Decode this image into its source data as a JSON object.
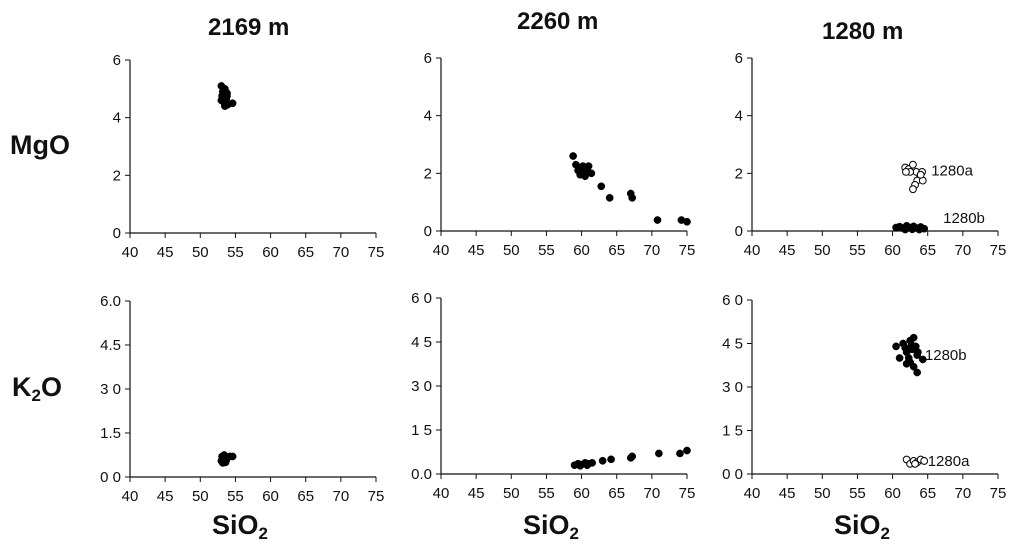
{
  "columns": [
    {
      "title": "2169 m"
    },
    {
      "title": "2260 m"
    },
    {
      "title": "1280 m"
    }
  ],
  "rows": [
    {
      "label_main": "MgO",
      "label_sub": ""
    },
    {
      "label_main": "K",
      "label_sub": "2",
      "label_tail": "O"
    }
  ],
  "xlabel": {
    "main": "SiO",
    "sub": "2"
  },
  "colors": {
    "filled": "#000000",
    "open_fill": "#ffffff",
    "axis": "#111111"
  },
  "chart_data": [
    {
      "type": "scatter",
      "panel": "MgO-2169",
      "xlabel": "SiO2",
      "ylabel": "MgO",
      "xlim": [
        40,
        75
      ],
      "ylim": [
        0,
        6
      ],
      "xticks": [
        "40",
        "45",
        "50",
        "55",
        "60",
        "65",
        "70",
        "75"
      ],
      "yticks": [
        "0",
        "2",
        "4",
        "6"
      ],
      "series": [
        {
          "marker": "filled",
          "points": [
            [
              53,
              5.1
            ],
            [
              53.5,
              5.0
            ],
            [
              53.2,
              4.9
            ],
            [
              53.8,
              4.85
            ],
            [
              53.1,
              4.75
            ],
            [
              53.4,
              4.7
            ],
            [
              53.7,
              4.65
            ],
            [
              53.0,
              4.6
            ],
            [
              53.3,
              4.55
            ],
            [
              53.6,
              4.5
            ],
            [
              53.9,
              4.45
            ],
            [
              53.5,
              4.4
            ],
            [
              54.6,
              4.5
            ],
            [
              53.2,
              4.65
            ],
            [
              53.8,
              4.75
            ]
          ]
        }
      ]
    },
    {
      "type": "scatter",
      "panel": "MgO-2260",
      "xlabel": "SiO2",
      "ylabel": "MgO",
      "xlim": [
        40,
        75
      ],
      "ylim": [
        0,
        6
      ],
      "xticks": [
        "40",
        "45",
        "50",
        "55",
        "60",
        "65",
        "70",
        "75"
      ],
      "yticks": [
        "0",
        "2",
        "4",
        "6"
      ],
      "series": [
        {
          "marker": "filled",
          "points": [
            [
              58.8,
              2.6
            ],
            [
              59.2,
              2.3
            ],
            [
              59.6,
              2.2
            ],
            [
              60.2,
              2.25
            ],
            [
              59.5,
              2.1
            ],
            [
              60.0,
              2.05
            ],
            [
              59.8,
              1.95
            ],
            [
              60.5,
              1.9
            ],
            [
              61.0,
              2.25
            ],
            [
              61.4,
              2.0
            ],
            [
              60.8,
              2.1
            ],
            [
              62.8,
              1.55
            ],
            [
              64.0,
              1.15
            ],
            [
              67.0,
              1.3
            ],
            [
              67.2,
              1.15
            ],
            [
              70.8,
              0.38
            ],
            [
              74.2,
              0.38
            ],
            [
              75.0,
              0.32
            ]
          ]
        }
      ]
    },
    {
      "type": "scatter",
      "panel": "MgO-1280",
      "xlabel": "SiO2",
      "ylabel": "MgO",
      "xlim": [
        40,
        75
      ],
      "ylim": [
        0,
        6
      ],
      "xticks": [
        "40",
        "45",
        "50",
        "55",
        "60",
        "65",
        "70",
        "75"
      ],
      "yticks": [
        "0",
        "2",
        "4",
        "6"
      ],
      "annotations": [
        {
          "text": "1280a",
          "x": 65.5,
          "y": 2.1
        },
        {
          "text": "1280b",
          "x": 67.2,
          "y": 0.45
        }
      ],
      "series": [
        {
          "name": "1280a",
          "marker": "open",
          "points": [
            [
              61.8,
              2.2
            ],
            [
              62.3,
              2.15
            ],
            [
              62.9,
              2.3
            ],
            [
              63.4,
              2.05
            ],
            [
              62.5,
              2.05
            ],
            [
              61.9,
              2.05
            ],
            [
              64.2,
              2.05
            ],
            [
              63.9,
              1.85
            ],
            [
              63.5,
              1.75
            ],
            [
              64.3,
              1.75
            ],
            [
              63.2,
              1.6
            ],
            [
              62.9,
              1.45
            ],
            [
              64.0,
              1.95
            ]
          ]
        },
        {
          "name": "1280b",
          "marker": "filled",
          "points": [
            [
              60.5,
              0.12
            ],
            [
              61.0,
              0.15
            ],
            [
              61.5,
              0.1
            ],
            [
              62.0,
              0.18
            ],
            [
              62.5,
              0.12
            ],
            [
              63.0,
              0.16
            ],
            [
              63.5,
              0.1
            ],
            [
              64.0,
              0.14
            ],
            [
              64.5,
              0.08
            ],
            [
              61.8,
              0.05
            ],
            [
              62.8,
              0.06
            ],
            [
              63.8,
              0.05
            ]
          ]
        }
      ]
    },
    {
      "type": "scatter",
      "panel": "K2O-2169",
      "xlabel": "SiO2",
      "ylabel": "K2O",
      "xlim": [
        40,
        75
      ],
      "ylim": [
        0,
        6
      ],
      "xticks": [
        "40",
        "45",
        "50",
        "55",
        "60",
        "65",
        "70",
        "75"
      ],
      "yticks": [
        "0 0",
        "1.5",
        "3 0",
        "4.5",
        "6.0"
      ],
      "series": [
        {
          "marker": "filled",
          "points": [
            [
              53.0,
              0.55
            ],
            [
              53.3,
              0.6
            ],
            [
              53.6,
              0.5
            ],
            [
              53.1,
              0.7
            ],
            [
              53.8,
              0.65
            ],
            [
              54.2,
              0.7
            ],
            [
              53.4,
              0.75
            ],
            [
              54.6,
              0.7
            ],
            [
              53.7,
              0.58
            ],
            [
              53.2,
              0.48
            ]
          ]
        }
      ]
    },
    {
      "type": "scatter",
      "panel": "K2O-2260",
      "xlabel": "SiO2",
      "ylabel": "K2O",
      "xlim": [
        40,
        75
      ],
      "ylim": [
        0,
        6
      ],
      "xticks": [
        "40",
        "45",
        "50",
        "55",
        "60",
        "65",
        "70",
        "75"
      ],
      "yticks": [
        "0.0",
        "1 5",
        "3 0",
        "4 5",
        "6 0"
      ],
      "series": [
        {
          "marker": "filled",
          "points": [
            [
              59.0,
              0.3
            ],
            [
              59.5,
              0.35
            ],
            [
              60.0,
              0.32
            ],
            [
              60.5,
              0.38
            ],
            [
              61.0,
              0.35
            ],
            [
              61.5,
              0.38
            ],
            [
              59.8,
              0.28
            ],
            [
              60.8,
              0.3
            ],
            [
              63.0,
              0.45
            ],
            [
              64.2,
              0.5
            ],
            [
              67.0,
              0.55
            ],
            [
              67.2,
              0.6
            ],
            [
              71.0,
              0.7
            ],
            [
              74.0,
              0.7
            ],
            [
              75.0,
              0.8
            ]
          ]
        }
      ]
    },
    {
      "type": "scatter",
      "panel": "K2O-1280",
      "xlabel": "SiO2",
      "ylabel": "K2O",
      "xlim": [
        40,
        75
      ],
      "ylim": [
        0,
        6
      ],
      "xticks": [
        "40",
        "45",
        "50",
        "55",
        "60",
        "65",
        "70",
        "75"
      ],
      "yticks": [
        "0 0",
        "1 5",
        "3 0",
        "4 5",
        "6 0"
      ],
      "annotations": [
        {
          "text": "1280b",
          "x": 64.6,
          "y": 4.1
        },
        {
          "text": "1280a",
          "x": 65.0,
          "y": 0.45
        }
      ],
      "series": [
        {
          "name": "1280b",
          "marker": "filled",
          "points": [
            [
              60.5,
              4.4
            ],
            [
              61.5,
              4.5
            ],
            [
              62.5,
              4.6
            ],
            [
              63.0,
              4.7
            ],
            [
              63.3,
              4.4
            ],
            [
              62.8,
              4.3
            ],
            [
              62.0,
              4.2
            ],
            [
              63.5,
              4.1
            ],
            [
              61.0,
              4.0
            ],
            [
              62.3,
              4.0
            ],
            [
              63.6,
              4.2
            ],
            [
              64.3,
              3.95
            ],
            [
              62.5,
              3.85
            ],
            [
              63.0,
              3.7
            ],
            [
              62.0,
              3.8
            ],
            [
              63.5,
              3.5
            ],
            [
              61.8,
              4.35
            ],
            [
              62.7,
              4.45
            ]
          ]
        },
        {
          "name": "1280a",
          "marker": "open",
          "points": [
            [
              62.0,
              0.5
            ],
            [
              62.5,
              0.35
            ],
            [
              63.0,
              0.45
            ],
            [
              63.5,
              0.4
            ],
            [
              64.0,
              0.5
            ],
            [
              64.5,
              0.45
            ],
            [
              63.2,
              0.35
            ]
          ]
        }
      ]
    }
  ]
}
